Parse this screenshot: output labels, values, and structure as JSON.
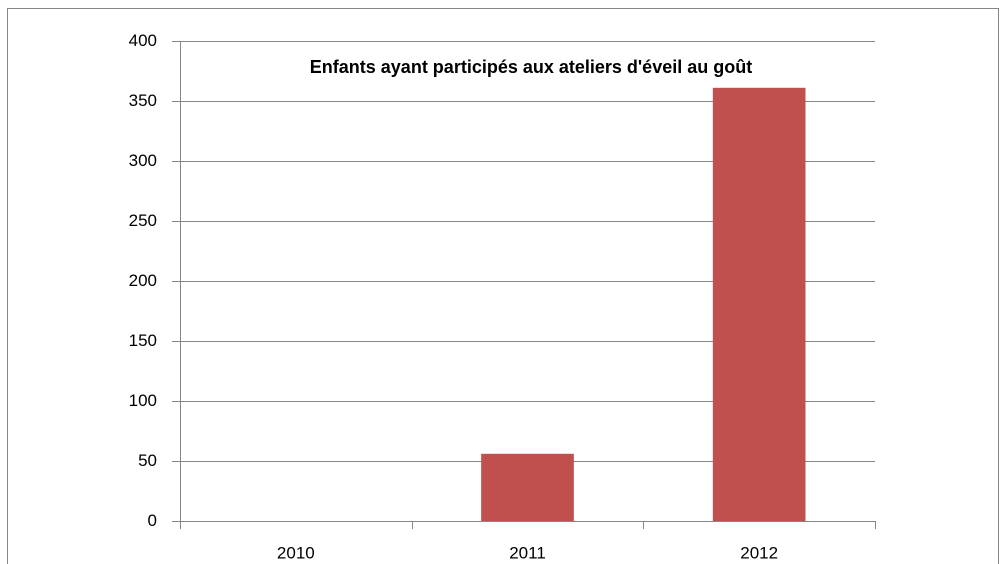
{
  "chart_data": {
    "type": "bar",
    "title": "Enfants ayant participés aux ateliers d'éveil au goût",
    "categories": [
      "2010",
      "2011",
      "2012"
    ],
    "values": [
      0,
      56,
      361
    ],
    "color": "#c0504d",
    "ylim": [
      0,
      400
    ],
    "yticks": [
      0,
      50,
      100,
      150,
      200,
      250,
      300,
      350,
      400
    ],
    "grid": true
  }
}
